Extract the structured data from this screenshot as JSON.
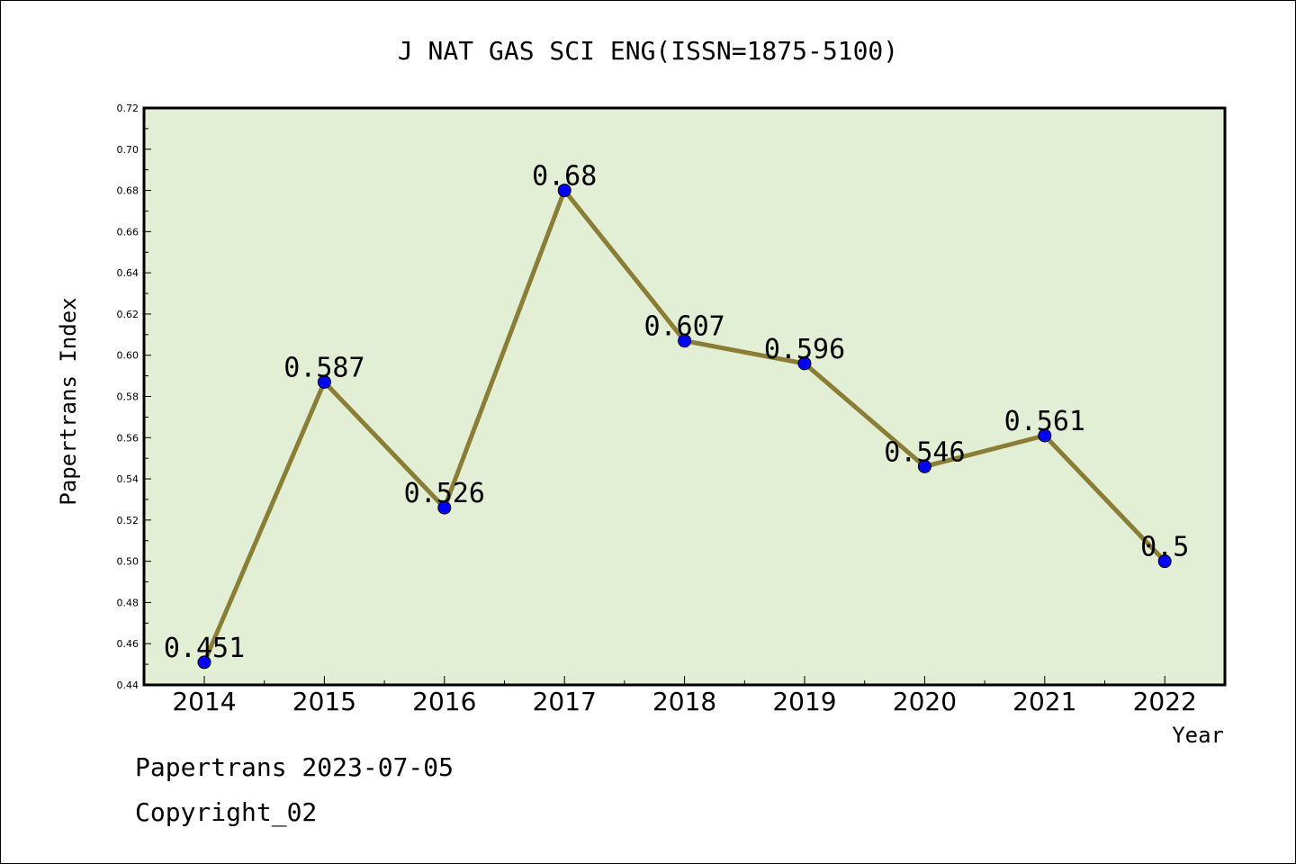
{
  "chart_data": {
    "type": "line",
    "title": "J NAT GAS SCI ENG(ISSN=1875-5100)",
    "xlabel": "Year",
    "ylabel": "Papertrans Index",
    "categories": [
      "2014",
      "2015",
      "2016",
      "2017",
      "2018",
      "2019",
      "2020",
      "2021",
      "2022"
    ],
    "series": [
      {
        "values": [
          0.451,
          0.587,
          0.526,
          0.68,
          0.607,
          0.596,
          0.546,
          0.561,
          0.5
        ],
        "data_labels": [
          "0.451",
          "0.587",
          "0.526",
          "0.68",
          "0.607",
          "0.596",
          "0.546",
          "0.561",
          "0.5"
        ]
      }
    ],
    "ylim": [
      0.44,
      0.72
    ],
    "yticks": [
      "0.44",
      "0.46",
      "0.48",
      "0.50",
      "0.52",
      "0.54",
      "0.56",
      "0.58",
      "0.60",
      "0.62",
      "0.64",
      "0.66",
      "0.68",
      "0.70",
      "0.72"
    ],
    "grid": false,
    "legend": "none",
    "colors": {
      "plot_background": "#e2efd4",
      "line": "#8a7d36",
      "marker": "#0000ff",
      "axis": "#000000"
    }
  },
  "footer": {
    "date_line": "Papertrans 2023-07-05",
    "copyright": "Copyright_02"
  }
}
